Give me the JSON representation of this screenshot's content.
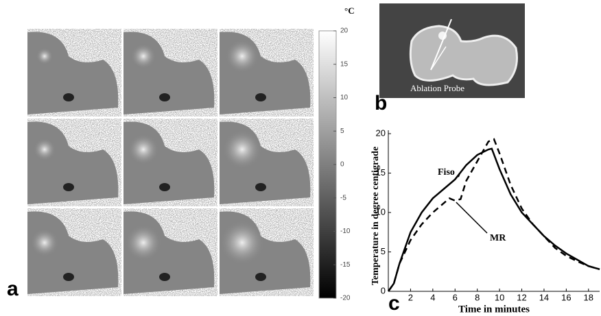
{
  "panel_labels": [
    "a",
    "b",
    "c"
  ],
  "annotations": [
    "Ablation Probe"
  ],
  "chart_data": [
    {
      "type": "colorbar",
      "unit": "°C",
      "ylim": [
        -20,
        20
      ],
      "yticks": [
        -20,
        -15,
        -10,
        -5,
        0,
        5,
        10,
        15,
        20
      ]
    },
    {
      "type": "line",
      "xlabel": "Time in minutes",
      "ylabel": "Temperature in degree centigrade",
      "xlim": [
        0,
        19
      ],
      "ylim": [
        0,
        20
      ],
      "xticks": [
        2,
        4,
        6,
        8,
        10,
        12,
        14,
        16,
        18
      ],
      "yticks": [
        0,
        5,
        10,
        15,
        20
      ],
      "series": [
        {
          "name": "Fiso",
          "color": "#000000",
          "linestyle": "solid",
          "x": [
            0,
            0.5,
            1,
            2,
            3,
            4,
            5,
            6,
            7,
            8,
            9,
            9.3,
            10,
            11,
            12,
            13,
            14,
            15,
            16,
            17,
            18,
            19
          ],
          "values": [
            0,
            1,
            3.5,
            7.5,
            10,
            11.8,
            13,
            14.2,
            16,
            17.3,
            18,
            18.1,
            15.5,
            12.3,
            10,
            8.5,
            7,
            5.8,
            4.8,
            4,
            3.2,
            2.8
          ]
        },
        {
          "name": "MR",
          "color": "#000000",
          "linestyle": "dashed",
          "x": [
            0,
            0.5,
            1,
            2,
            3,
            4,
            5,
            5.5,
            6,
            6.5,
            7,
            8,
            9,
            9.5,
            10,
            11,
            12,
            13,
            14,
            15,
            16,
            17,
            18,
            19
          ],
          "values": [
            0,
            1,
            3.5,
            6.5,
            8.5,
            10,
            11.2,
            11.8,
            11.5,
            11.7,
            14,
            16.5,
            19,
            19.3,
            17.5,
            13.5,
            10.5,
            8.5,
            7,
            5.5,
            4.5,
            3.8,
            3.2,
            2.8
          ]
        }
      ]
    }
  ]
}
